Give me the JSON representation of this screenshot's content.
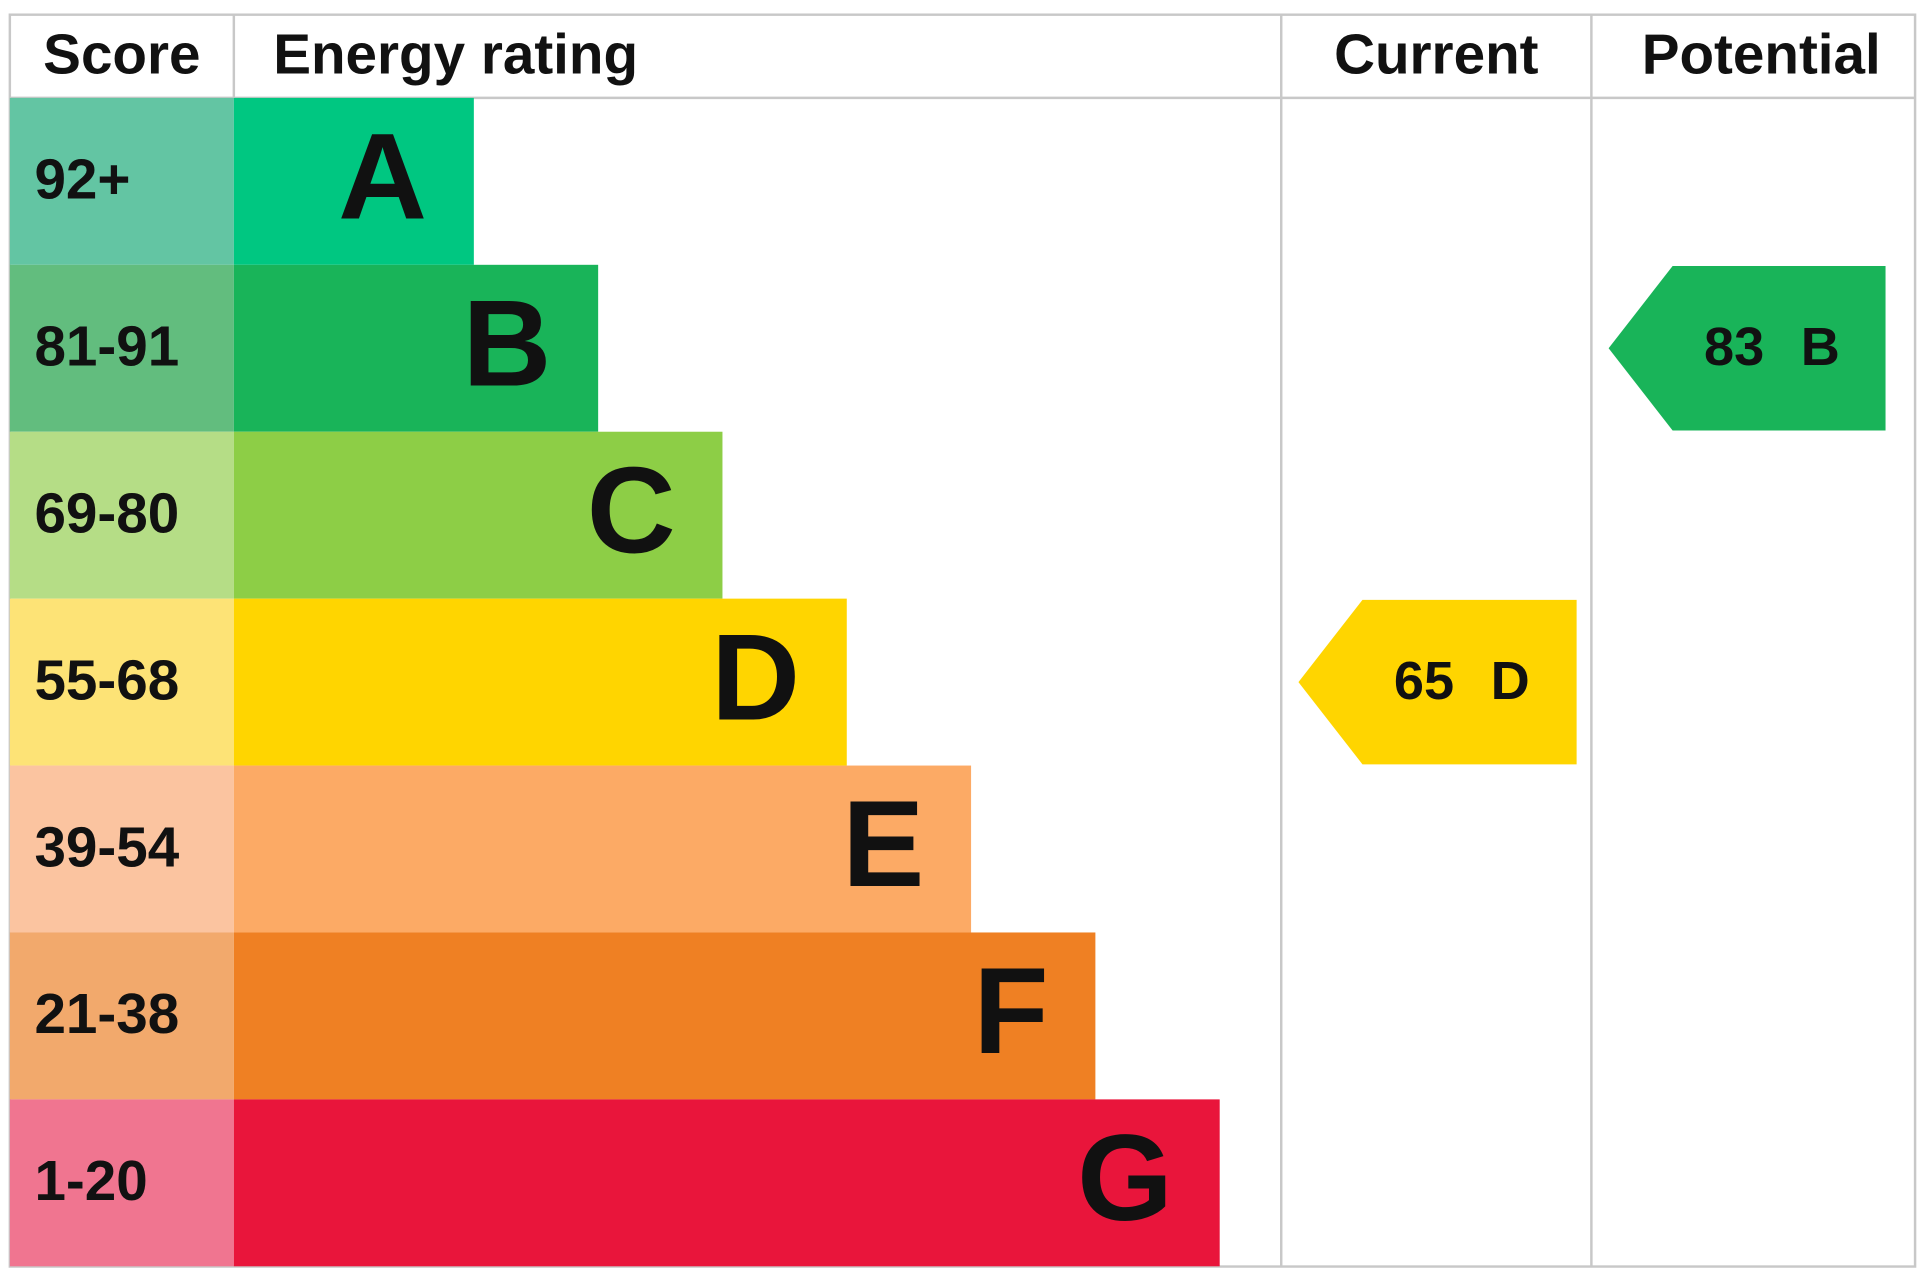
{
  "header": {
    "score": "Score",
    "energy_rating": "Energy rating",
    "current": "Current",
    "potential": "Potential"
  },
  "rows": [
    {
      "score": "92+",
      "letter": "A",
      "score_color": "#63c5a3",
      "color": "#00c781"
    },
    {
      "score": "81-91",
      "letter": "B",
      "score_color": "#62bd7e",
      "color": "#19b459"
    },
    {
      "score": "69-80",
      "letter": "C",
      "score_color": "#b5dd86",
      "color": "#8dce46"
    },
    {
      "score": "55-68",
      "letter": "D",
      "score_color": "#fde376",
      "color": "#ffd500"
    },
    {
      "score": "39-54",
      "letter": "E",
      "score_color": "#fbc4a0",
      "color": "#fcaa65"
    },
    {
      "score": "21-38",
      "letter": "F",
      "score_color": "#f2a96c",
      "color": "#ef8023"
    },
    {
      "score": "1-20",
      "letter": "G",
      "score_color": "#f07590",
      "color": "#e9153b"
    }
  ],
  "current": {
    "score": 65,
    "rating": "D"
  },
  "potential": {
    "score": 83,
    "rating": "B"
  }
}
